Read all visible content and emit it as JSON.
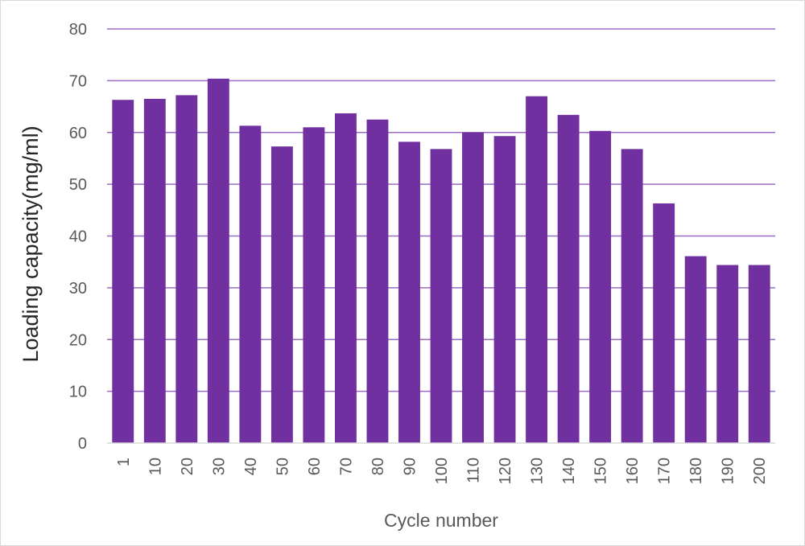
{
  "chart_data": {
    "type": "bar",
    "title": "",
    "xlabel": "Cycle number",
    "ylabel": "Loading capacity(mg/ml)",
    "ylim": [
      0,
      80
    ],
    "yticks": [
      0,
      10,
      20,
      30,
      40,
      50,
      60,
      70,
      80
    ],
    "grid": true,
    "categories": [
      "1",
      "10",
      "20",
      "30",
      "40",
      "50",
      "60",
      "70",
      "80",
      "90",
      "100",
      "110",
      "120",
      "130",
      "140",
      "150",
      "160",
      "170",
      "180",
      "190",
      "200"
    ],
    "values": [
      66.3,
      66.5,
      67.2,
      70.4,
      61.3,
      57.3,
      61.0,
      63.7,
      62.5,
      58.2,
      56.8,
      60.0,
      59.3,
      67.0,
      63.4,
      60.3,
      56.8,
      46.3,
      36.1,
      34.4,
      34.4
    ],
    "colors": {
      "bar": "#7030a0",
      "grid": "#9b6bc3",
      "axis": "#d9d9d9"
    }
  }
}
